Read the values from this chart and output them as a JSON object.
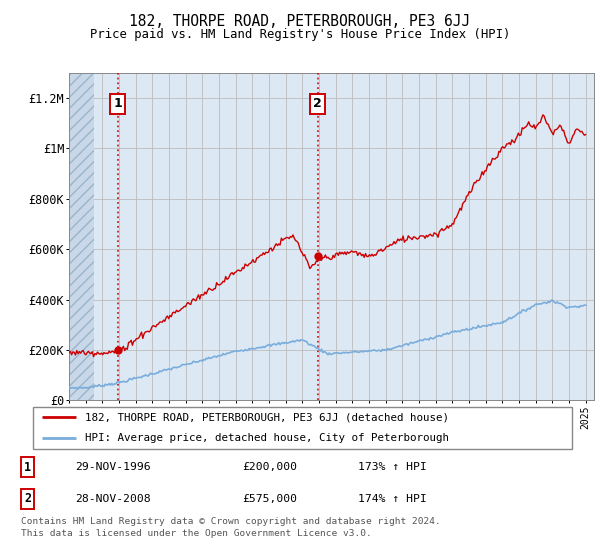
{
  "title1": "182, THORPE ROAD, PETERBOROUGH, PE3 6JJ",
  "title2": "Price paid vs. HM Land Registry's House Price Index (HPI)",
  "background_color": "#dce9f5",
  "ylim": [
    0,
    1300000
  ],
  "yticks": [
    0,
    200000,
    400000,
    600000,
    800000,
    1000000,
    1200000
  ],
  "ytick_labels": [
    "£0",
    "£200K",
    "£400K",
    "£600K",
    "£800K",
    "£1M",
    "£1.2M"
  ],
  "marker1_x": 1996.91,
  "marker1_y": 200000,
  "marker2_x": 2008.91,
  "marker2_y": 575000,
  "vline1_x": 1996.91,
  "vline2_x": 2008.91,
  "sale_line_color": "#cc0000",
  "hpi_line_color": "#7aaddb",
  "legend_sale_label": "182, THORPE ROAD, PETERBOROUGH, PE3 6JJ (detached house)",
  "legend_hpi_label": "HPI: Average price, detached house, City of Peterborough",
  "table_row1": [
    "1",
    "29-NOV-1996",
    "£200,000",
    "173% ↑ HPI"
  ],
  "table_row2": [
    "2",
    "28-NOV-2008",
    "£575,000",
    "174% ↑ HPI"
  ],
  "footer": "Contains HM Land Registry data © Crown copyright and database right 2024.\nThis data is licensed under the Open Government Licence v3.0.",
  "xmin": 1994,
  "xmax": 2025.5,
  "hatch_end": 1995.5
}
